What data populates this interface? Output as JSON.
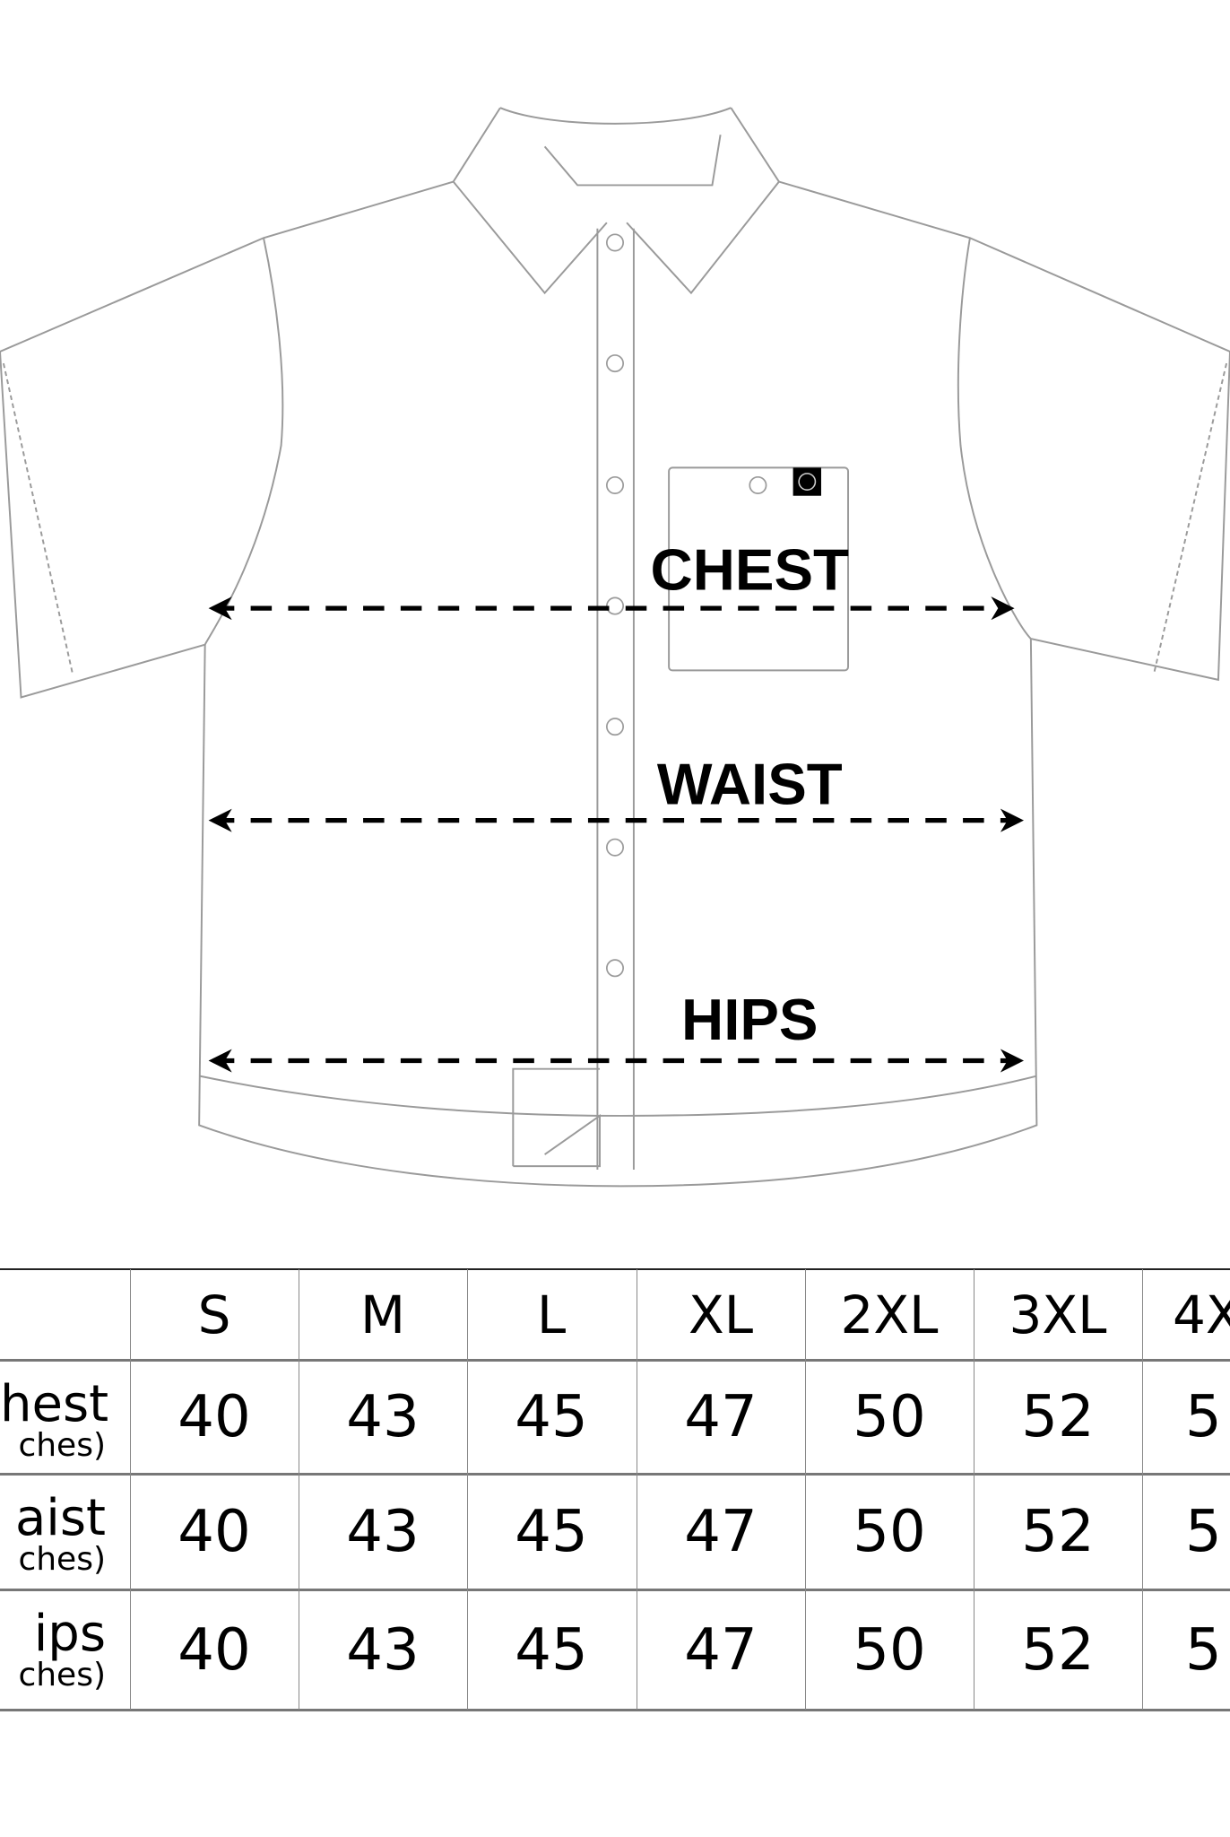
{
  "diagram": {
    "labels": {
      "chest": "CHEST",
      "waist": "WAIST",
      "hips": "HIPS"
    },
    "icons": [
      "pocket-logo-icon",
      "arrow-icon"
    ]
  },
  "table": {
    "headers": [
      "S",
      "M",
      "L",
      "XL",
      "2XL",
      "3XL",
      "4X"
    ],
    "rows": [
      {
        "label": "hest",
        "unit": "ches)",
        "values": [
          "40",
          "43",
          "45",
          "47",
          "50",
          "52",
          "5"
        ]
      },
      {
        "label": "aist",
        "unit": "ches)",
        "values": [
          "40",
          "43",
          "45",
          "47",
          "50",
          "52",
          "5"
        ]
      },
      {
        "label": "ips",
        "unit": "ches)",
        "values": [
          "40",
          "43",
          "45",
          "47",
          "50",
          "52",
          "5"
        ]
      }
    ]
  }
}
